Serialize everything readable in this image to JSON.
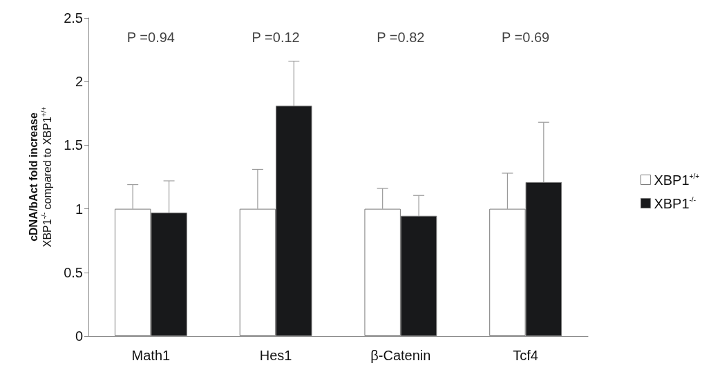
{
  "chart_data": {
    "type": "bar",
    "categories": [
      "Math1",
      "Hes1",
      "β-Catenin",
      "Tcf4"
    ],
    "series": [
      {
        "name": "XBP1$^{+/+}$",
        "color": "#ffffff",
        "values": [
          1,
          1,
          1,
          1
        ],
        "errors": [
          [
            1,
            1.19
          ],
          [
            1,
            1.31
          ],
          [
            1,
            1.16
          ],
          [
            1,
            1.28
          ]
        ]
      },
      {
        "name": "XBP1$^{-/-}$",
        "color": "#18191b",
        "values": [
          0.97,
          1.81,
          0.945,
          1.21
        ],
        "errors": [
          [
            0.97,
            1.22
          ],
          [
            1.81,
            2.16
          ],
          [
            0.945,
            1.105
          ],
          [
            1.21,
            1.68
          ]
        ]
      }
    ],
    "ylabel": "cDNA/bAct fold increase\nXBP1$^{-/-}$ compared to XBP1$^{+/+}$",
    "ylim": [
      0,
      2.5
    ],
    "yticks": [
      0,
      0.5,
      1,
      1.5,
      2,
      2.5
    ],
    "annotations": [
      "P =0.94",
      "P =0.12",
      "P =0.82",
      "P =0.69"
    ],
    "grid": false,
    "legend": "right"
  }
}
